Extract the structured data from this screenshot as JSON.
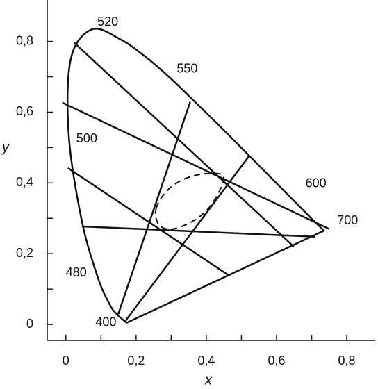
{
  "chart_data": {
    "type": "chromaticity",
    "x_label": "x",
    "y_label": "y",
    "xlim": [
      -0.053,
      0.881
    ],
    "ylim": [
      -0.045,
      0.917
    ],
    "xticks": [
      0,
      {
        "value": 0.2,
        "label": "0,2"
      },
      {
        "value": 0.4,
        "label": "0,4"
      },
      {
        "value": 0.6,
        "label": "0,6"
      },
      {
        "value": 0.8,
        "label": "0,8"
      }
    ],
    "yticks": [
      0,
      {
        "value": 0.2,
        "label": "0,2"
      },
      {
        "value": 0.4,
        "label": "0,4"
      },
      {
        "value": 0.6,
        "label": "0,6"
      },
      {
        "value": 0.8,
        "label": "0,8"
      }
    ],
    "xminor": [
      0.1,
      0.3,
      0.5,
      0.7
    ],
    "yminor": [
      0.1,
      0.3,
      0.5,
      0.7
    ],
    "color": "#111111",
    "locus": {
      "x": [
        0.1733,
        0.144,
        0.124,
        0.091,
        0.045,
        0.008,
        0.014,
        0.074,
        0.155,
        0.23,
        0.302,
        0.373,
        0.444,
        0.512,
        0.575,
        0.627,
        0.691,
        0.735
      ],
      "y": [
        0.0048,
        0.03,
        0.058,
        0.133,
        0.295,
        0.538,
        0.75,
        0.834,
        0.806,
        0.754,
        0.692,
        0.624,
        0.555,
        0.487,
        0.424,
        0.372,
        0.308,
        0.265
      ],
      "point_labels": [
        "400",
        null,
        null,
        "480",
        null,
        "500",
        null,
        "520",
        null,
        null,
        "550",
        null,
        null,
        null,
        null,
        "600",
        null,
        "700"
      ]
    },
    "lines": [
      {
        "x": [
          0.024,
          0.649
        ],
        "y": [
          0.796,
          0.22
        ]
      },
      {
        "x": [
          -0.01,
          0.75
        ],
        "y": [
          0.627,
          0.27
        ]
      },
      {
        "x": [
          0.006,
          0.465
        ],
        "y": [
          0.442,
          0.138
        ]
      },
      {
        "x": [
          0.046,
          0.71
        ],
        "y": [
          0.277,
          0.248
        ]
      },
      {
        "x": [
          0.149,
          0.354
        ],
        "y": [
          0.029,
          0.629
        ]
      },
      {
        "x": [
          0.168,
          0.521
        ],
        "y": [
          0.008,
          0.475
        ]
      }
    ],
    "ellipse": {
      "x": [
        0.257,
        0.287,
        0.337,
        0.396,
        0.446,
        0.442,
        0.406,
        0.356,
        0.297,
        0.263
      ],
      "y": [
        0.328,
        0.377,
        0.411,
        0.426,
        0.422,
        0.387,
        0.328,
        0.289,
        0.269,
        0.285
      ]
    }
  }
}
